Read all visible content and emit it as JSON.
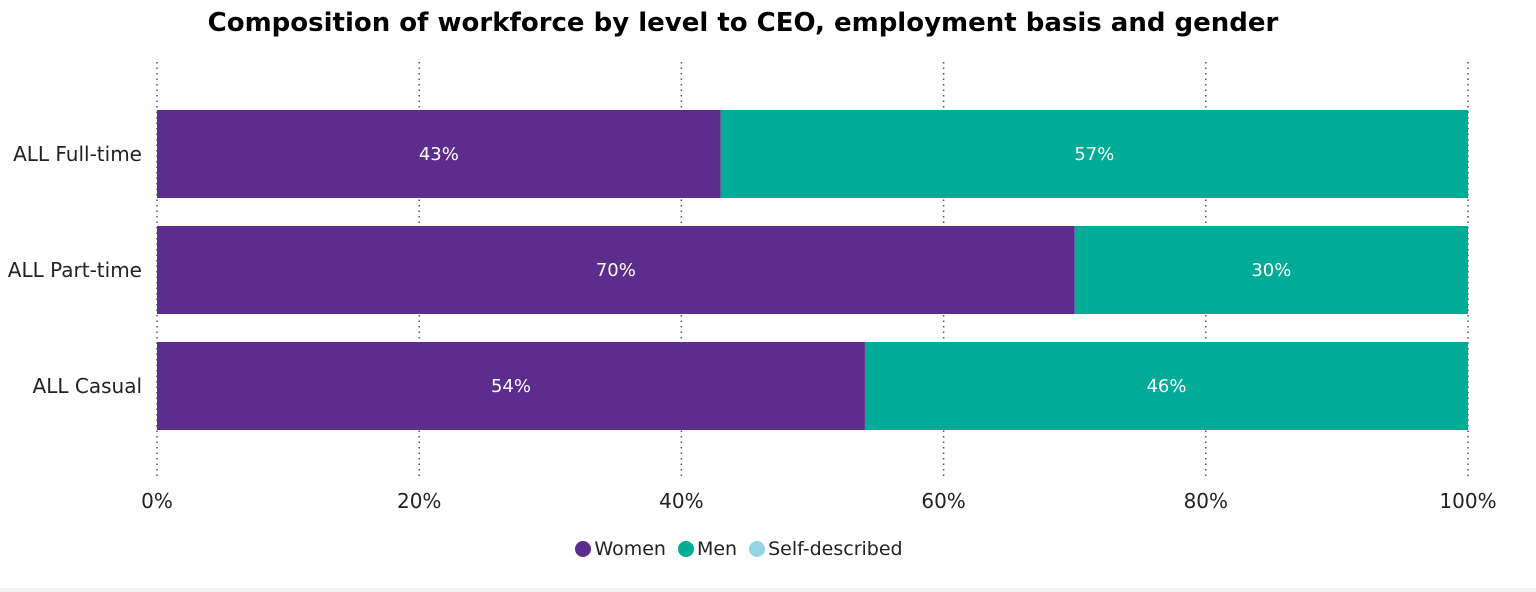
{
  "chart_data": {
    "type": "bar",
    "orientation": "horizontal",
    "stacked": true,
    "title": "Composition of workforce by level to CEO, employment basis and gender",
    "categories": [
      "ALL Full-time",
      "ALL Part-time",
      "ALL Casual"
    ],
    "series": [
      {
        "name": "Women",
        "values": [
          43,
          70,
          54
        ],
        "color": "#5c2d8c"
      },
      {
        "name": "Men",
        "values": [
          57,
          30,
          46
        ],
        "color": "#00ab98"
      },
      {
        "name": "Self-described",
        "values": [
          0,
          0,
          0
        ],
        "color": "#94d2e4"
      }
    ],
    "data_labels": [
      [
        "43%",
        "70%",
        "54%"
      ],
      [
        "57%",
        "30%",
        "46%"
      ]
    ],
    "xlim": [
      0,
      100
    ],
    "xticks": [
      "0%",
      "20%",
      "40%",
      "60%",
      "80%",
      "100%"
    ],
    "grid": "vertical-dotted",
    "legend_position": "bottom-center"
  }
}
